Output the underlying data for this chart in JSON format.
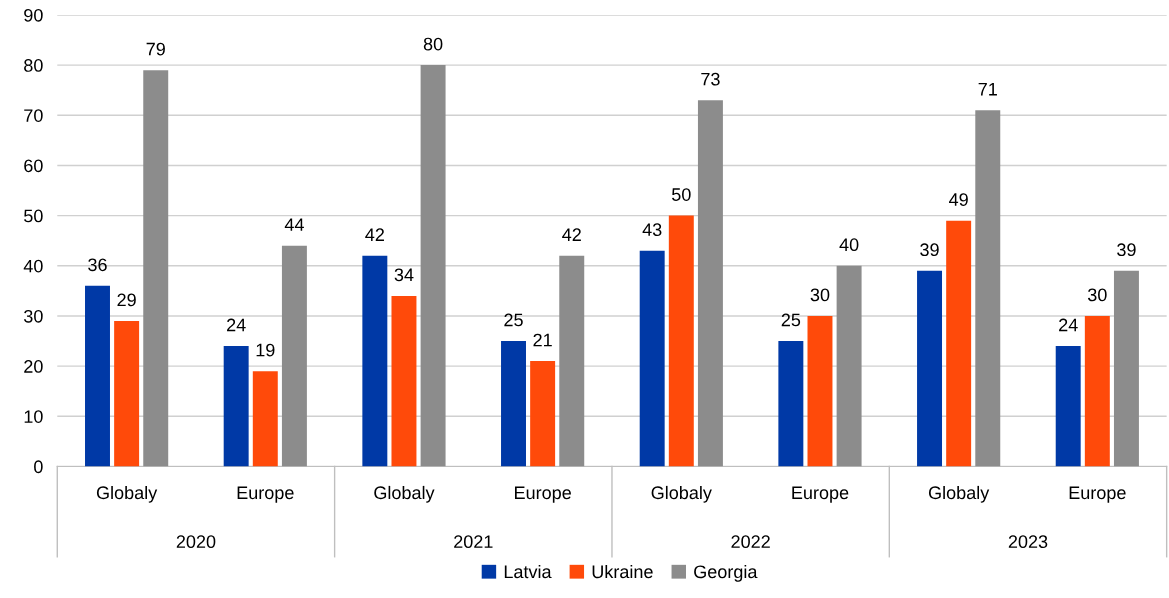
{
  "chart_data": {
    "type": "bar",
    "categories": [
      "Globaly",
      "Europe",
      "Globaly",
      "Europe",
      "Globaly",
      "Europe",
      "Globaly",
      "Europe"
    ],
    "series": [
      {
        "name": "Latvia",
        "color": "#0039a6",
        "values": [
          36,
          24,
          42,
          25,
          43,
          25,
          39,
          24
        ]
      },
      {
        "name": "Ukraine",
        "color": "#ff4a0a",
        "values": [
          29,
          19,
          34,
          21,
          50,
          30,
          49,
          30
        ]
      },
      {
        "name": "Georgia",
        "color": "#8c8c8c",
        "values": [
          79,
          44,
          80,
          42,
          73,
          40,
          71,
          39
        ]
      }
    ],
    "annotations": [
      "2020",
      "2021",
      "2022",
      "2023"
    ],
    "ylim": [
      0,
      90
    ],
    "yticks": [
      0,
      10,
      20,
      30,
      40,
      50,
      60,
      70,
      80,
      90
    ],
    "grid": "y",
    "legend": "bottom",
    "data_labels": true
  }
}
